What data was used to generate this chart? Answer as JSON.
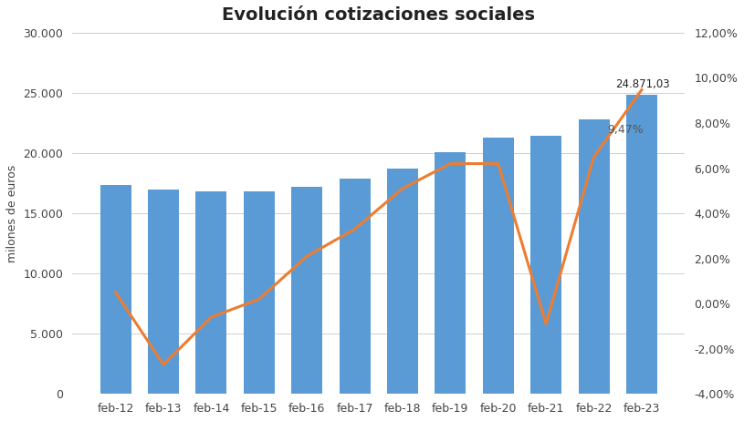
{
  "title": "Evolución cotizaciones sociales",
  "categories": [
    "feb-12",
    "feb-13",
    "feb-14",
    "feb-15",
    "feb-16",
    "feb-17",
    "feb-18",
    "feb-19",
    "feb-20",
    "feb-21",
    "feb-22",
    "feb-23"
  ],
  "bar_values": [
    17350,
    16950,
    16800,
    16850,
    17200,
    17850,
    18700,
    20050,
    21300,
    21450,
    22800,
    24871
  ],
  "line_values": [
    0.005,
    -0.027,
    -0.006,
    0.002,
    0.021,
    0.033,
    0.051,
    0.062,
    0.062,
    -0.009,
    0.065,
    0.0947
  ],
  "bar_color": "#5B9BD5",
  "line_color": "#ED7D31",
  "ylabel_left": "milones de euros",
  "ylim_left": [
    0,
    30000
  ],
  "ylim_right": [
    -0.04,
    0.12
  ],
  "yticks_left": [
    0,
    5000,
    10000,
    15000,
    20000,
    25000,
    30000
  ],
  "yticks_right": [
    -0.04,
    -0.02,
    0.0,
    0.02,
    0.04,
    0.06,
    0.08,
    0.1,
    0.12
  ],
  "annotation_bar_value": "24.871,03",
  "annotation_line_value": "9,47%",
  "title_fontsize": 14,
  "background_color": "#ffffff",
  "grid_color": "#d0d0d0"
}
